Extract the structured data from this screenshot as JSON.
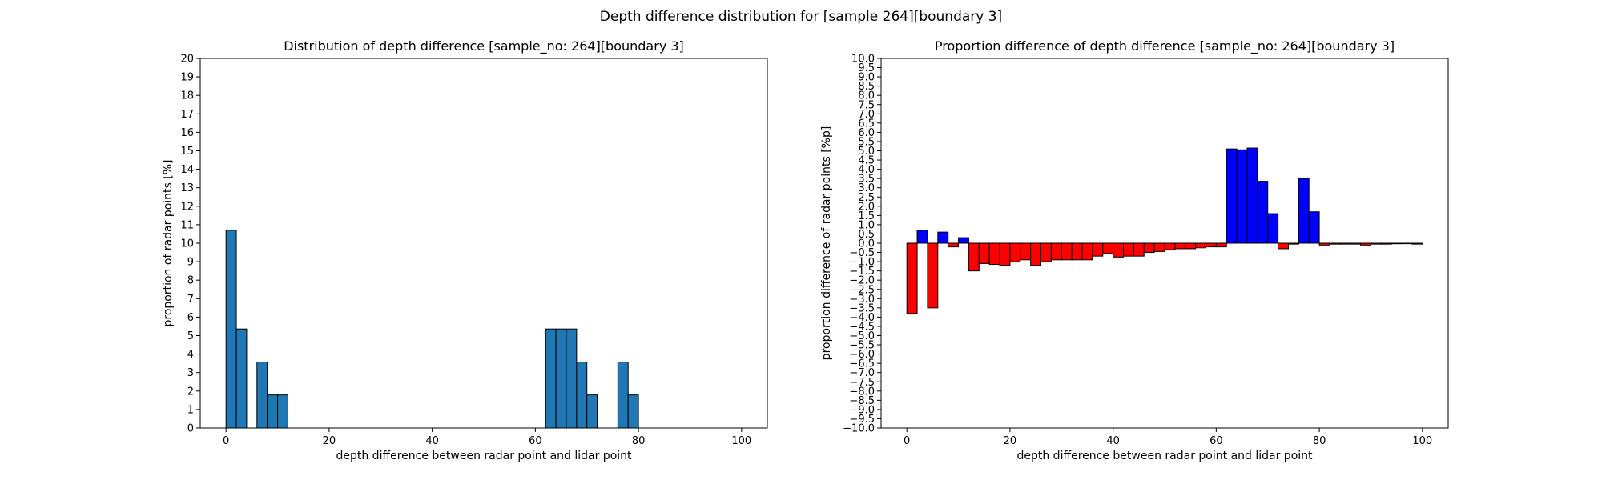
{
  "figure": {
    "title": "Depth difference distribution for [sample 264][boundary 3]"
  },
  "chart_data": [
    {
      "type": "bar",
      "title": "Distribution of depth difference [sample_no: 264][boundary 3]",
      "xlabel": "depth difference between radar point and lidar point",
      "ylabel": "proportion of radar points [%]",
      "xlim": [
        -5,
        105
      ],
      "ylim": [
        0,
        20
      ],
      "xticks": [
        0,
        20,
        40,
        60,
        80,
        100
      ],
      "yticks": [
        0,
        1,
        2,
        3,
        4,
        5,
        6,
        7,
        8,
        9,
        10,
        11,
        12,
        13,
        14,
        15,
        16,
        17,
        18,
        19,
        20
      ],
      "bin_width": 2,
      "color": "#1f77b4",
      "edgecolor": "#000000",
      "x": [
        1,
        3,
        7,
        9,
        11,
        63,
        65,
        67,
        69,
        71,
        77,
        79
      ],
      "values": [
        10.7,
        5.36,
        3.57,
        1.79,
        1.79,
        5.36,
        5.36,
        5.36,
        3.57,
        1.79,
        3.57,
        1.79
      ]
    },
    {
      "type": "bar",
      "title": "Proportion difference of depth difference [sample_no: 264][boundary 3]",
      "xlabel": "depth difference between radar point and lidar point",
      "ylabel": "proportion difference of radar points [%p]",
      "xlim": [
        -5,
        105
      ],
      "ylim": [
        -10,
        10
      ],
      "xticks": [
        0,
        20,
        40,
        60,
        80,
        100
      ],
      "ytick_step": 0.5,
      "bin_width": 2,
      "positive_color": "#0000ff",
      "negative_color": "#ff0000",
      "edgecolor": "#000000",
      "x": [
        1,
        3,
        5,
        7,
        9,
        11,
        13,
        15,
        17,
        19,
        21,
        23,
        25,
        27,
        29,
        31,
        33,
        35,
        37,
        39,
        41,
        43,
        45,
        47,
        49,
        51,
        53,
        55,
        57,
        59,
        61,
        63,
        65,
        67,
        69,
        71,
        73,
        75,
        77,
        79,
        81,
        83,
        85,
        87,
        89,
        91,
        93,
        95,
        97,
        99
      ],
      "values": [
        -3.8,
        0.7,
        -3.5,
        0.6,
        -0.2,
        0.3,
        -1.5,
        -1.1,
        -1.15,
        -1.2,
        -1.0,
        -0.9,
        -1.2,
        -1.0,
        -0.9,
        -0.9,
        -0.9,
        -0.9,
        -0.7,
        -0.55,
        -0.75,
        -0.7,
        -0.7,
        -0.5,
        -0.45,
        -0.35,
        -0.3,
        -0.3,
        -0.25,
        -0.2,
        -0.2,
        5.1,
        5.05,
        5.15,
        3.35,
        1.6,
        -0.3,
        -0.05,
        3.5,
        1.7,
        -0.1,
        -0.05,
        -0.05,
        -0.05,
        -0.1,
        -0.05,
        -0.05,
        -0.03,
        -0.02,
        -0.05
      ]
    }
  ]
}
